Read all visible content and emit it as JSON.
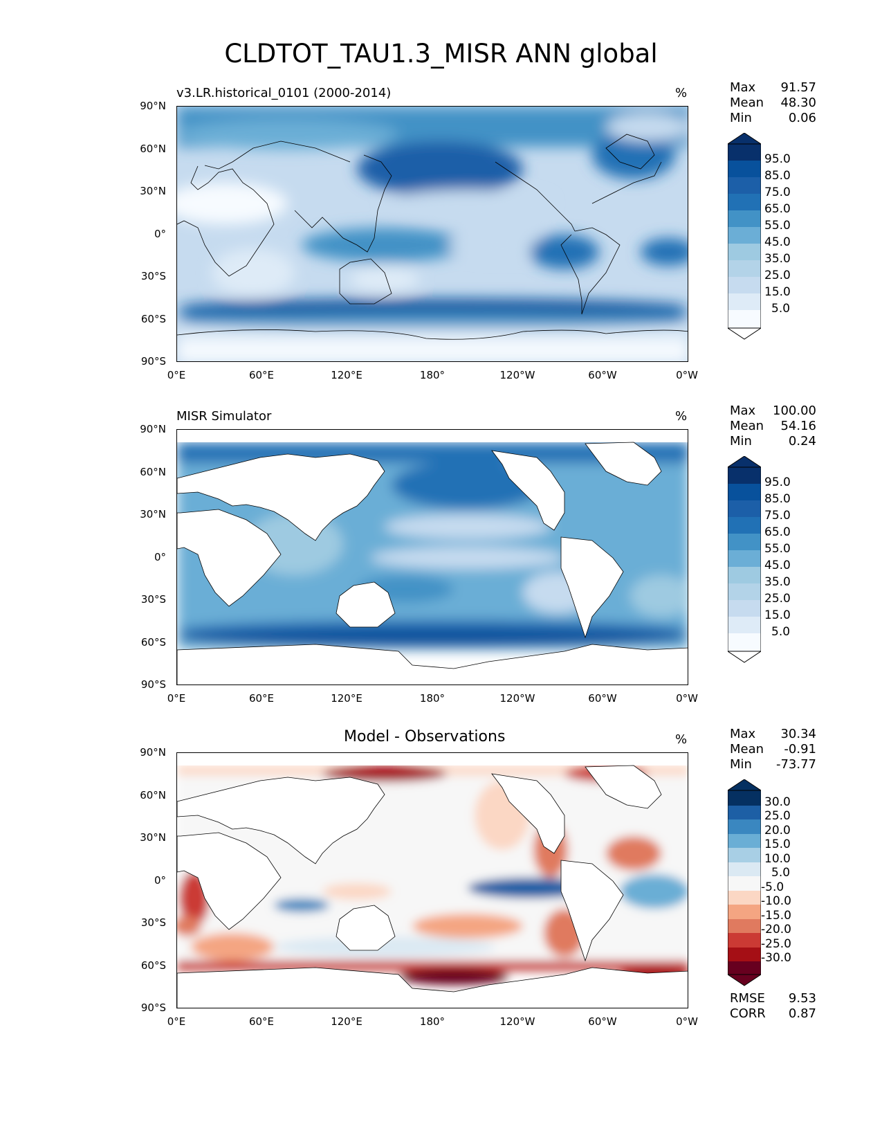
{
  "figure_title": "CLDTOT_TAU1.3_MISR ANN global",
  "units": "%",
  "lat_labels": [
    "90°N",
    "60°N",
    "30°N",
    "0°",
    "30°S",
    "60°S",
    "90°S"
  ],
  "lon_labels": [
    "0°E",
    "60°E",
    "120°E",
    "180°",
    "120°W",
    "60°W",
    "0°W"
  ],
  "colors": {
    "blues": [
      "#f7fbff",
      "#deebf7",
      "#c6dbef",
      "#b3d3e8",
      "#9ecae1",
      "#6baed6",
      "#4292c6",
      "#2171b5",
      "#1c5fa8",
      "#08519c",
      "#08306b"
    ],
    "diff": [
      "#67001f",
      "#a50f15",
      "#cb3a34",
      "#e07a5f",
      "#f4a582",
      "#fbd7c4",
      "#f7f7f7",
      "#dbe9f3",
      "#a8cfe5",
      "#6aaed5",
      "#3a87c0",
      "#1d5fa5",
      "#053061"
    ]
  },
  "panels": [
    {
      "title": "v3.LR.historical_0101 (2000-2014)",
      "stats": [
        {
          "k": "Max",
          "v": "91.57"
        },
        {
          "k": "Mean",
          "v": "48.30"
        },
        {
          "k": "Min",
          "v": "0.06"
        }
      ],
      "colorbar_labels": [
        "95.0",
        "85.0",
        "75.0",
        "65.0",
        "55.0",
        "45.0",
        "35.0",
        "25.0",
        "15.0",
        "5.0"
      ]
    },
    {
      "title": "MISR Simulator",
      "stats": [
        {
          "k": "Max",
          "v": "100.00"
        },
        {
          "k": "Mean",
          "v": "54.16"
        },
        {
          "k": "Min",
          "v": "0.24"
        }
      ],
      "colorbar_labels": [
        "95.0",
        "85.0",
        "75.0",
        "65.0",
        "55.0",
        "45.0",
        "35.0",
        "25.0",
        "15.0",
        "5.0"
      ]
    },
    {
      "title": "Model - Observations",
      "stats": [
        {
          "k": "Max",
          "v": "30.34"
        },
        {
          "k": "Mean",
          "v": "-0.91"
        },
        {
          "k": "Min",
          "v": "-73.77"
        }
      ],
      "colorbar_labels": [
        "30.0",
        "25.0",
        "20.0",
        "15.0",
        "10.0",
        "5.0",
        "-5.0",
        "-10.0",
        "-15.0",
        "-20.0",
        "-25.0",
        "-30.0"
      ],
      "extra_stats": [
        {
          "k": "RMSE",
          "v": "9.53"
        },
        {
          "k": "CORR",
          "v": "0.87"
        }
      ]
    }
  ]
}
